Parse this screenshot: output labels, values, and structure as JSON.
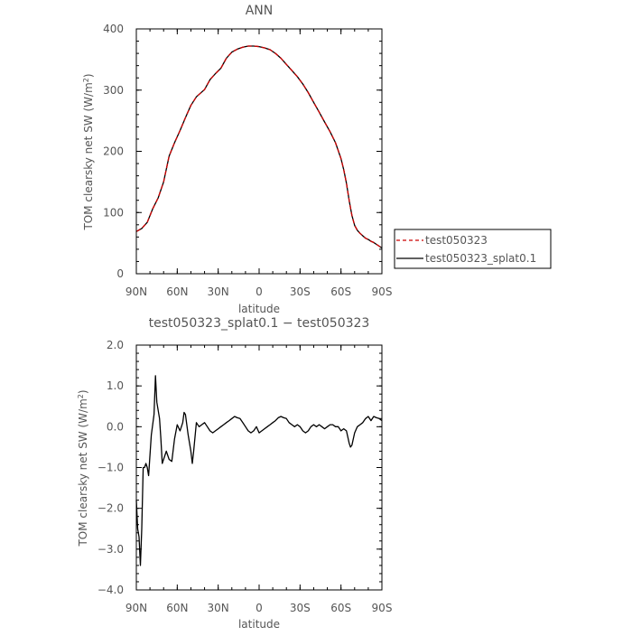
{
  "chart_data": [
    {
      "type": "line",
      "title": "ANN",
      "xlabel": "latitude",
      "ylabel_prefix": "TOM clearsky net SW (W/m",
      "ylabel_sup": "2",
      "ylabel_suffix": ")",
      "xlim": [
        90,
        -90
      ],
      "ylim": [
        0,
        400
      ],
      "xticks": [
        {
          "value": 90,
          "label": "90N"
        },
        {
          "value": 60,
          "label": "60N"
        },
        {
          "value": 30,
          "label": "30N"
        },
        {
          "value": 0,
          "label": "0"
        },
        {
          "value": -30,
          "label": "30S"
        },
        {
          "value": -60,
          "label": "60S"
        },
        {
          "value": -90,
          "label": "90S"
        }
      ],
      "yticks": [
        {
          "value": 0,
          "label": "0"
        },
        {
          "value": 100,
          "label": "100"
        },
        {
          "value": 200,
          "label": "200"
        },
        {
          "value": 300,
          "label": "300"
        },
        {
          "value": 400,
          "label": "400"
        }
      ],
      "series": [
        {
          "name": "test050323",
          "color": "#cc0000",
          "dash": true,
          "points": [
            [
              90,
              69
            ],
            [
              86,
              74
            ],
            [
              82,
              84
            ],
            [
              78,
              106
            ],
            [
              74,
              124
            ],
            [
              70,
              150
            ],
            [
              66,
              192
            ],
            [
              62,
              214
            ],
            [
              58,
              234
            ],
            [
              54,
              255
            ],
            [
              50,
              275
            ],
            [
              46,
              289
            ],
            [
              42,
              297
            ],
            [
              40,
              301
            ],
            [
              36,
              317
            ],
            [
              32,
              327
            ],
            [
              28,
              336
            ],
            [
              24,
              352
            ],
            [
              20,
              362
            ],
            [
              16,
              367
            ],
            [
              12,
              370
            ],
            [
              8,
              372
            ],
            [
              4,
              372
            ],
            [
              0,
              371
            ],
            [
              -4,
              369
            ],
            [
              -8,
              366
            ],
            [
              -12,
              360
            ],
            [
              -16,
              352
            ],
            [
              -20,
              342
            ],
            [
              -24,
              332
            ],
            [
              -28,
              322
            ],
            [
              -32,
              310
            ],
            [
              -36,
              296
            ],
            [
              -40,
              280
            ],
            [
              -44,
              264
            ],
            [
              -48,
              248
            ],
            [
              -52,
              232
            ],
            [
              -56,
              214
            ],
            [
              -60,
              188
            ],
            [
              -62,
              170
            ],
            [
              -64,
              148
            ],
            [
              -66,
              120
            ],
            [
              -68,
              95
            ],
            [
              -70,
              79
            ],
            [
              -72,
              71
            ],
            [
              -74,
              66
            ],
            [
              -76,
              62
            ],
            [
              -78,
              58
            ],
            [
              -80,
              56
            ],
            [
              -82,
              53
            ],
            [
              -84,
              51
            ],
            [
              -86,
              48
            ],
            [
              -88,
              45
            ],
            [
              -90,
              42
            ]
          ]
        },
        {
          "name": "test050323_splat0.1",
          "color": "#000000",
          "dash": false,
          "points": [
            [
              90,
              69
            ],
            [
              86,
              74
            ],
            [
              82,
              84
            ],
            [
              78,
              106
            ],
            [
              74,
              124
            ],
            [
              70,
              150
            ],
            [
              66,
              192
            ],
            [
              62,
              214
            ],
            [
              58,
              234
            ],
            [
              54,
              255
            ],
            [
              50,
              275
            ],
            [
              46,
              289
            ],
            [
              42,
              297
            ],
            [
              40,
              301
            ],
            [
              36,
              317
            ],
            [
              32,
              327
            ],
            [
              28,
              336
            ],
            [
              24,
              352
            ],
            [
              20,
              362
            ],
            [
              16,
              367
            ],
            [
              12,
              370
            ],
            [
              8,
              372
            ],
            [
              4,
              372
            ],
            [
              0,
              371
            ],
            [
              -4,
              369
            ],
            [
              -8,
              366
            ],
            [
              -12,
              360
            ],
            [
              -16,
              352
            ],
            [
              -20,
              342
            ],
            [
              -24,
              332
            ],
            [
              -28,
              322
            ],
            [
              -32,
              310
            ],
            [
              -36,
              296
            ],
            [
              -40,
              280
            ],
            [
              -44,
              264
            ],
            [
              -48,
              248
            ],
            [
              -52,
              232
            ],
            [
              -56,
              214
            ],
            [
              -60,
              188
            ],
            [
              -62,
              170
            ],
            [
              -64,
              148
            ],
            [
              -66,
              120
            ],
            [
              -68,
              95
            ],
            [
              -70,
              79
            ],
            [
              -72,
              71
            ],
            [
              -74,
              66
            ],
            [
              -76,
              62
            ],
            [
              -78,
              58
            ],
            [
              -80,
              56
            ],
            [
              -82,
              53
            ],
            [
              -84,
              51
            ],
            [
              -86,
              48
            ],
            [
              -88,
              45
            ],
            [
              -90,
              42
            ]
          ]
        }
      ],
      "legend_placement": "right"
    },
    {
      "type": "line",
      "title": "test050323_splat0.1 − test050323",
      "xlabel": "latitude",
      "ylabel_prefix": "TOM clearsky net SW (W/m",
      "ylabel_sup": "2",
      "ylabel_suffix": ")",
      "xlim": [
        90,
        -90
      ],
      "ylim": [
        -4.0,
        2.0
      ],
      "xticks": [
        {
          "value": 90,
          "label": "90N"
        },
        {
          "value": 60,
          "label": "60N"
        },
        {
          "value": 30,
          "label": "30N"
        },
        {
          "value": 0,
          "label": "0"
        },
        {
          "value": -30,
          "label": "30S"
        },
        {
          "value": -60,
          "label": "60S"
        },
        {
          "value": -90,
          "label": "90S"
        }
      ],
      "yticks": [
        {
          "value": 2.0,
          "label": "2.0"
        },
        {
          "value": 1.0,
          "label": "1.0"
        },
        {
          "value": 0.0,
          "label": "0.0"
        },
        {
          "value": -1.0,
          "label": "−1.0"
        },
        {
          "value": -2.0,
          "label": "−2.0"
        },
        {
          "value": -3.0,
          "label": "−3.0"
        },
        {
          "value": -4.0,
          "label": "−4.0"
        }
      ],
      "series": [
        {
          "color": "#000000",
          "dash": false,
          "points": [
            [
              90,
              -1.8
            ],
            [
              89,
              -2.5
            ],
            [
              88,
              -2.7
            ],
            [
              87,
              -3.4
            ],
            [
              86,
              -2.5
            ],
            [
              85,
              -1.0
            ],
            [
              84,
              -1.0
            ],
            [
              83,
              -0.9
            ],
            [
              82,
              -1.0
            ],
            [
              81,
              -1.2
            ],
            [
              79,
              -0.2
            ],
            [
              77,
              0.3
            ],
            [
              76,
              1.25
            ],
            [
              75,
              0.6
            ],
            [
              73,
              0.2
            ],
            [
              72,
              -0.3
            ],
            [
              71,
              -0.9
            ],
            [
              70,
              -0.8
            ],
            [
              68,
              -0.6
            ],
            [
              66,
              -0.8
            ],
            [
              64,
              -0.85
            ],
            [
              62,
              -0.3
            ],
            [
              60,
              0.05
            ],
            [
              58,
              -0.1
            ],
            [
              56,
              0.1
            ],
            [
              55,
              0.35
            ],
            [
              54,
              0.3
            ],
            [
              52,
              -0.2
            ],
            [
              50,
              -0.6
            ],
            [
              49,
              -0.9
            ],
            [
              48,
              -0.6
            ],
            [
              46,
              0.1
            ],
            [
              44,
              0.0
            ],
            [
              42,
              0.05
            ],
            [
              40,
              0.1
            ],
            [
              38,
              0.0
            ],
            [
              36,
              -0.1
            ],
            [
              34,
              -0.15
            ],
            [
              32,
              -0.1
            ],
            [
              30,
              -0.05
            ],
            [
              28,
              0.0
            ],
            [
              26,
              0.05
            ],
            [
              24,
              0.1
            ],
            [
              22,
              0.15
            ],
            [
              20,
              0.2
            ],
            [
              18,
              0.25
            ],
            [
              16,
              0.22
            ],
            [
              14,
              0.2
            ],
            [
              12,
              0.1
            ],
            [
              10,
              0.0
            ],
            [
              8,
              -0.1
            ],
            [
              6,
              -0.15
            ],
            [
              4,
              -0.1
            ],
            [
              2,
              0.0
            ],
            [
              0,
              -0.15
            ],
            [
              -2,
              -0.1
            ],
            [
              -4,
              -0.05
            ],
            [
              -6,
              0.0
            ],
            [
              -8,
              0.05
            ],
            [
              -10,
              0.1
            ],
            [
              -12,
              0.15
            ],
            [
              -14,
              0.22
            ],
            [
              -16,
              0.25
            ],
            [
              -18,
              0.22
            ],
            [
              -20,
              0.2
            ],
            [
              -22,
              0.1
            ],
            [
              -24,
              0.05
            ],
            [
              -26,
              0.0
            ],
            [
              -28,
              0.05
            ],
            [
              -30,
              0.0
            ],
            [
              -32,
              -0.1
            ],
            [
              -34,
              -0.15
            ],
            [
              -36,
              -0.1
            ],
            [
              -38,
              0.0
            ],
            [
              -40,
              0.05
            ],
            [
              -42,
              0.0
            ],
            [
              -44,
              0.05
            ],
            [
              -46,
              0.0
            ],
            [
              -48,
              -0.05
            ],
            [
              -50,
              0.0
            ],
            [
              -52,
              0.05
            ],
            [
              -54,
              0.05
            ],
            [
              -56,
              0.0
            ],
            [
              -58,
              0.0
            ],
            [
              -60,
              -0.1
            ],
            [
              -62,
              -0.05
            ],
            [
              -64,
              -0.1
            ],
            [
              -66,
              -0.4
            ],
            [
              -67,
              -0.5
            ],
            [
              -68,
              -0.45
            ],
            [
              -69,
              -0.3
            ],
            [
              -70,
              -0.15
            ],
            [
              -72,
              0.0
            ],
            [
              -74,
              0.05
            ],
            [
              -76,
              0.1
            ],
            [
              -78,
              0.2
            ],
            [
              -80,
              0.25
            ],
            [
              -82,
              0.15
            ],
            [
              -84,
              0.25
            ],
            [
              -86,
              0.22
            ],
            [
              -88,
              0.2
            ],
            [
              -90,
              0.15
            ]
          ]
        }
      ]
    }
  ]
}
